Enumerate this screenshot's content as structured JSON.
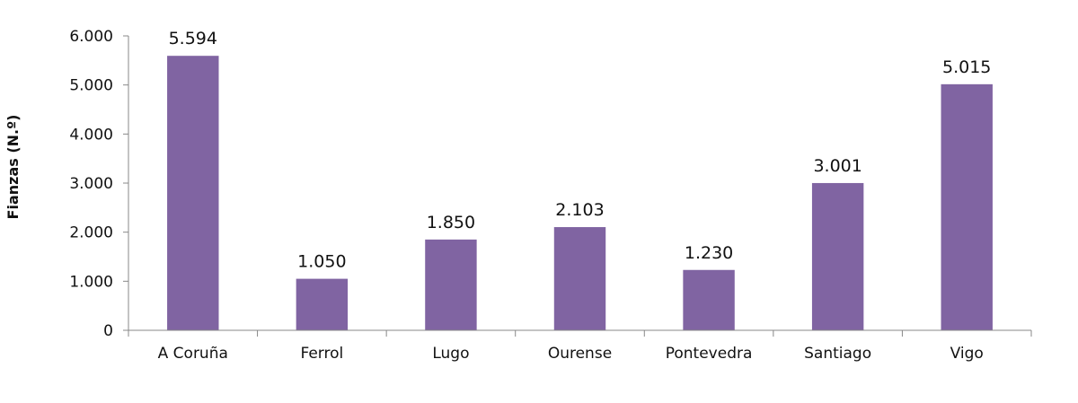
{
  "chart_data": {
    "type": "bar",
    "title": "",
    "xlabel": "",
    "ylabel": "Fianzas (N.º)",
    "categories": [
      "A Coruña",
      "Ferrol",
      "Lugo",
      "Ourense",
      "Pontevedra",
      "Santiago",
      "Vigo"
    ],
    "values": [
      5594,
      1050,
      1850,
      2103,
      1230,
      3001,
      5015
    ],
    "value_labels": [
      "5.594",
      "1.050",
      "1.850",
      "2.103",
      "1.230",
      "3.001",
      "5.015"
    ],
    "ylim": [
      0,
      6000
    ],
    "yticks": [
      0,
      1000,
      2000,
      3000,
      4000,
      5000,
      6000
    ],
    "ytick_labels": [
      "0",
      "1.000",
      "2.000",
      "3.000",
      "4.000",
      "5.000",
      "6.000"
    ],
    "grid": false,
    "legend": "none",
    "bar_color": "#8064a2",
    "axis_color": "#888888"
  }
}
